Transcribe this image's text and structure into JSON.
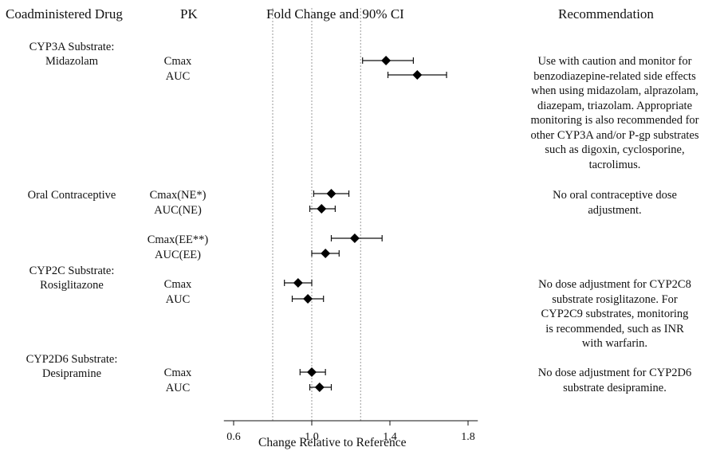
{
  "headers": {
    "drug": "Coadministered Drug",
    "pk": "PK",
    "plot": "Fold Change and 90% CI",
    "recommendation": "Recommendation"
  },
  "chart_data": {
    "type": "scatter",
    "xlabel": "Change Relative to Reference",
    "xlim": [
      0.55,
      1.85
    ],
    "xticks": [
      0.6,
      1.0,
      1.4,
      1.8
    ],
    "xtick_labels": [
      "0.6",
      "1.0",
      "1.4",
      "1.8"
    ],
    "reference_lines": [
      0.8,
      1.0,
      1.25
    ],
    "grid": false,
    "series": [
      {
        "values": [
          {
            "pk": "Cmax",
            "estimate": 1.38,
            "lower": 1.26,
            "upper": 1.52
          },
          {
            "pk": "AUC",
            "estimate": 1.54,
            "lower": 1.39,
            "upper": 1.69
          },
          {
            "pk": "Cmax(NE*)",
            "estimate": 1.1,
            "lower": 1.01,
            "upper": 1.19
          },
          {
            "pk": "AUC(NE)",
            "estimate": 1.05,
            "lower": 0.99,
            "upper": 1.12
          },
          {
            "pk": "Cmax(EE**)",
            "estimate": 1.22,
            "lower": 1.1,
            "upper": 1.36
          },
          {
            "pk": "AUC(EE)",
            "estimate": 1.07,
            "lower": 1.0,
            "upper": 1.14
          },
          {
            "pk": "Cmax",
            "estimate": 0.93,
            "lower": 0.86,
            "upper": 1.0
          },
          {
            "pk": "AUC",
            "estimate": 0.98,
            "lower": 0.9,
            "upper": 1.06
          },
          {
            "pk": "Cmax",
            "estimate": 1.0,
            "lower": 0.94,
            "upper": 1.07
          },
          {
            "pk": "AUC",
            "estimate": 1.04,
            "lower": 0.99,
            "upper": 1.1
          }
        ]
      }
    ]
  },
  "drugs": [
    {
      "lines": [
        "CYP3A Substrate:",
        "Midazolam"
      ]
    },
    {
      "lines": [
        "Oral Contraceptive"
      ]
    },
    {
      "lines": [
        "CYP2C Substrate:",
        "Rosiglitazone"
      ]
    },
    {
      "lines": [
        "CYP2D6 Substrate:",
        "Desipramine"
      ]
    }
  ],
  "recommendations": [
    {
      "lines": [
        "Use with caution and monitor for",
        "benzodiazepine-related side effects",
        "when using midazolam, alprazolam,",
        "diazepam, triazolam. Appropriate",
        "monitoring is also recommended for",
        "other CYP3A and/or P-gp substrates",
        "such as digoxin, cyclosporine,",
        "tacrolimus."
      ]
    },
    {
      "lines": [
        "No oral contraceptive dose",
        "adjustment."
      ]
    },
    {
      "lines": [
        "No dose adjustment for CYP2C8",
        "substrate rosiglitazone. For",
        "CYP2C9 substrates, monitoring",
        "is recommended, such as INR",
        "with warfarin."
      ]
    },
    {
      "lines": [
        "No dose adjustment for CYP2D6",
        "substrate desipramine."
      ]
    }
  ]
}
